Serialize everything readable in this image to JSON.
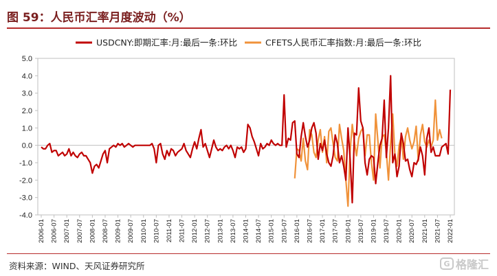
{
  "header": {
    "title": "图 59：人民币汇率月度波动（%）"
  },
  "footer": {
    "source": "资料来源：WIND、天风证券研究所",
    "watermark_text": "格隆汇",
    "watermark_logo": "G"
  },
  "chart_data": {
    "type": "line",
    "ylim": [
      -4.0,
      5.0
    ],
    "yticks": [
      "5.0",
      "4.0",
      "3.0",
      "2.0",
      "1.0",
      "0.0",
      "-1.0",
      "-2.0",
      "-3.0",
      "-4.0"
    ],
    "grid": false,
    "legend_position": "top",
    "x_tick_labels": [
      "2006-01",
      "2006-07",
      "2007-01",
      "2007-07",
      "2008-01",
      "2008-07",
      "2009-01",
      "2009-07",
      "2010-01",
      "2010-07",
      "2011-01",
      "2011-07",
      "2012-01",
      "2012-07",
      "2013-01",
      "2013-07",
      "2014-01",
      "2014-07",
      "2015-01",
      "2015-07",
      "2016-01",
      "2016-07",
      "2017-01",
      "2017-07",
      "2018-01",
      "2018-07",
      "2019-01",
      "2019-07",
      "2020-01",
      "2020-07",
      "2021-01",
      "2021-07",
      "2022-01"
    ],
    "series": [
      {
        "name": "USDCNY:即期汇率:月:最后一条:环比",
        "color": "#c00000",
        "start": "2006-01",
        "values": [
          -0.1,
          -0.2,
          -0.2,
          0.0,
          0.1,
          -0.4,
          -0.3,
          -0.3,
          -0.6,
          -0.5,
          -0.4,
          -0.6,
          -0.5,
          -0.2,
          -0.6,
          -0.4,
          -0.6,
          -0.7,
          -0.5,
          -0.4,
          -0.6,
          -0.6,
          -0.8,
          -1.0,
          -1.6,
          -1.2,
          -1.1,
          -1.3,
          -0.9,
          -0.5,
          -0.3,
          -1.0,
          -0.2,
          -0.1,
          0.0,
          -0.1,
          0.1,
          0.0,
          0.1,
          -0.1,
          0.0,
          0.1,
          0.0,
          -0.1,
          0.0,
          0.0,
          0.0,
          0.0,
          0.0,
          0.0,
          0.0,
          0.0,
          0.1,
          -0.2,
          -1.0,
          0.0,
          0.1,
          -0.5,
          -0.8,
          -0.3,
          -0.6,
          -0.2,
          -0.3,
          -0.6,
          -0.4,
          -0.3,
          -0.2,
          0.1,
          -0.3,
          -0.5,
          -0.7,
          -0.2,
          0.2,
          -0.2,
          0.4,
          0.9,
          -0.1,
          0.1,
          -0.3,
          -0.7,
          -0.2,
          0.3,
          -0.1,
          -0.3,
          -0.2,
          -0.3,
          -0.1,
          0.0,
          -0.2,
          0.0,
          -0.3,
          -0.7,
          -0.1,
          -0.2,
          -0.1,
          -0.4,
          -0.2,
          1.2,
          1.0,
          0.5,
          0.2,
          -0.2,
          -0.6,
          0.1,
          -0.2,
          -0.1,
          0.1,
          0.0,
          0.3,
          0.1,
          0.0,
          0.1,
          0.0,
          0.0,
          2.9,
          -0.1,
          0.4,
          0.3,
          1.3,
          1.4,
          -0.5,
          -0.7,
          0.5,
          1.3,
          0.5,
          -0.1,
          0.3,
          1.0,
          1.3,
          0.7,
          -0.8,
          0.1,
          -0.3,
          0.3,
          -0.5,
          -1.0,
          -1.2,
          -0.6,
          0.6,
          0.1,
          -1.0,
          -0.6,
          -1.2,
          -2.0,
          1.0,
          -0.8,
          -3.3,
          0.7,
          0.6,
          3.3,
          1.4,
          1.0,
          -1.0,
          -1.7,
          -0.8,
          -0.6,
          -0.7,
          -2.2,
          -1.0,
          0.0,
          0.4,
          2.6,
          -0.7,
          1.0,
          4.0,
          -1.0,
          -0.5,
          -1.8,
          -1.2,
          0.7,
          0.1,
          -0.9,
          -0.8,
          -1.4,
          -1.8,
          -1.0,
          -1.1,
          -0.8,
          -0.1,
          -0.6,
          -1.7,
          0.4,
          1.0,
          -0.4,
          -0.1,
          -0.6,
          -0.6,
          -0.6,
          -0.1,
          0.0,
          0.1,
          -0.5,
          3.2
        ]
      },
      {
        "name": "CFETS人民币汇率指数:月:最后一条:环比",
        "color": "#f0923a",
        "start": "2015-12",
        "values": [
          -1.9,
          -0.2,
          -0.3,
          -0.9,
          0.4,
          -0.9,
          -1.4,
          0.9,
          0.6,
          -0.4,
          -0.7,
          0.3,
          0.9,
          -0.4,
          0.5,
          -1.0,
          0.8,
          1.0,
          0.1,
          -0.7,
          -0.9,
          1.2,
          0.4,
          -0.3,
          -2.0,
          -3.5,
          -0.3,
          1.2,
          0.2,
          -0.6,
          0.4,
          0.8,
          1.0,
          -0.6,
          0.6,
          0.6,
          -1.0,
          -2.0,
          1.8,
          0.3,
          -1.3,
          0.5,
          0.6,
          -0.4,
          -2.0,
          0.1,
          1.8,
          -0.5,
          -1.2,
          0.0,
          0.5,
          -0.8,
          0.5,
          1.0,
          0.3,
          -0.2,
          0.2,
          1.1,
          -0.9,
          0.6,
          1.2,
          0.2,
          -0.1,
          0.3,
          -0.1,
          0.3,
          2.6,
          0.3,
          0.9,
          0.4
        ]
      }
    ]
  }
}
